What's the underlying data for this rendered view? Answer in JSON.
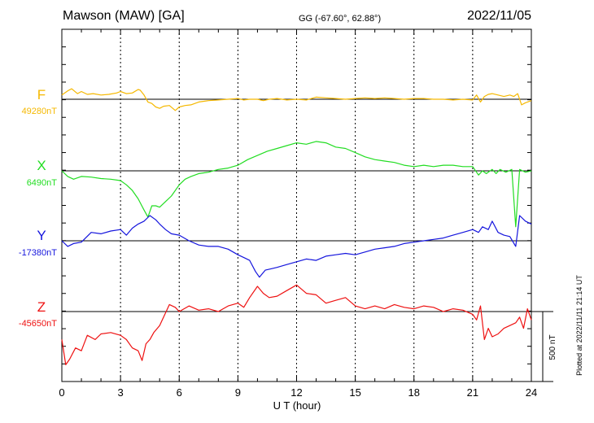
{
  "chart_data": {
    "type": "line",
    "title": "Mawson (MAW)  [GA]",
    "coordinates": "GG (-67.60°,  62.88°)",
    "date": "2022/11/05",
    "xlabel": "U T (hour)",
    "xlim": [
      0,
      24
    ],
    "xticks": [
      0,
      3,
      6,
      9,
      12,
      15,
      18,
      21,
      24
    ],
    "xtick_labels": [
      "0",
      "3",
      "6",
      "9",
      "12",
      "15",
      "18",
      "21",
      "24"
    ],
    "grid": true,
    "scale_bar": {
      "label": "500 nT",
      "value_nT": 500
    },
    "plotted_note": "Plotted at 2022/11/11 21:14 UT",
    "series": [
      {
        "name": "F",
        "baseline": "49280nT",
        "color": "#f5b800",
        "x": [
          0,
          0.3,
          0.5,
          0.8,
          1,
          1.3,
          1.6,
          2,
          2.4,
          2.8,
          3,
          3.3,
          3.6,
          3.9,
          4,
          4.2,
          4.4,
          4.6,
          4.8,
          5,
          5.2,
          5.5,
          5.8,
          6,
          6.3,
          6.6,
          7,
          7.5,
          8,
          8.5,
          9,
          9.3,
          9.6,
          10,
          10.3,
          10.6,
          11,
          11.5,
          12,
          12.5,
          13,
          13.5,
          14,
          14.5,
          15,
          15.5,
          16,
          16.5,
          17,
          17.5,
          18,
          18.5,
          19,
          19.5,
          20,
          20.5,
          21,
          21.2,
          21.4,
          21.6,
          21.8,
          22,
          22.3,
          22.6,
          22.9,
          23.1,
          23.3,
          23.5,
          23.7,
          24
        ],
        "values": [
          30,
          60,
          75,
          40,
          55,
          35,
          40,
          30,
          35,
          45,
          55,
          40,
          45,
          70,
          65,
          30,
          -20,
          -30,
          -55,
          -65,
          -50,
          -45,
          -80,
          -55,
          -45,
          -40,
          -20,
          -10,
          -5,
          0,
          5,
          -5,
          0,
          0,
          -10,
          0,
          5,
          -5,
          0,
          -5,
          15,
          10,
          5,
          0,
          5,
          10,
          5,
          10,
          5,
          0,
          5,
          5,
          0,
          0,
          -5,
          0,
          -5,
          30,
          -20,
          20,
          35,
          40,
          30,
          20,
          30,
          20,
          40,
          -40,
          -25,
          -10
        ]
      },
      {
        "name": "X",
        "baseline": "6490nT",
        "color": "#22dd22",
        "x": [
          0,
          0.3,
          0.6,
          1,
          1.5,
          2,
          2.5,
          3,
          3.3,
          3.6,
          3.9,
          4.2,
          4.4,
          4.6,
          4.8,
          5,
          5.3,
          5.6,
          6,
          6.3,
          6.6,
          7,
          7.5,
          8,
          8.5,
          9,
          9.5,
          10,
          10.5,
          11,
          11.5,
          12,
          12.5,
          13,
          13.5,
          14,
          14.5,
          15,
          15.5,
          16,
          16.5,
          17,
          17.5,
          18,
          18.5,
          19,
          19.5,
          20,
          20.5,
          21,
          21.3,
          21.5,
          21.7,
          22,
          22.2,
          22.4,
          22.7,
          23,
          23.2,
          23.4,
          23.7,
          24
        ],
        "values": [
          0,
          -40,
          -60,
          -40,
          -45,
          -55,
          -60,
          -70,
          -100,
          -140,
          -200,
          -280,
          -330,
          -250,
          -250,
          -260,
          -220,
          -180,
          -100,
          -60,
          -40,
          -20,
          -10,
          10,
          20,
          40,
          80,
          110,
          140,
          160,
          180,
          200,
          190,
          210,
          200,
          170,
          160,
          130,
          100,
          80,
          70,
          60,
          40,
          30,
          40,
          30,
          40,
          40,
          30,
          30,
          -30,
          0,
          -20,
          10,
          -20,
          10,
          -10,
          10,
          -400,
          10,
          -10,
          0
        ]
      },
      {
        "name": "Y",
        "baseline": "-17380nT",
        "color": "#1515dd",
        "x": [
          0,
          0.3,
          0.6,
          1,
          1.5,
          2,
          2.5,
          3,
          3.3,
          3.6,
          3.9,
          4.2,
          4.5,
          4.8,
          5,
          5.3,
          5.6,
          6,
          6.5,
          7,
          7.5,
          8,
          8.5,
          9,
          9.3,
          9.6,
          9.9,
          10.1,
          10.4,
          10.7,
          11,
          11.5,
          12,
          12.5,
          13,
          13.5,
          14,
          14.5,
          15,
          15.5,
          16,
          16.5,
          17,
          17.5,
          18,
          18.5,
          19,
          19.5,
          20,
          20.5,
          21,
          21.3,
          21.5,
          21.8,
          22,
          22.3,
          22.6,
          22.9,
          23.2,
          23.4,
          23.7,
          24
        ],
        "values": [
          0,
          -40,
          -20,
          -10,
          60,
          50,
          70,
          80,
          40,
          90,
          120,
          140,
          180,
          150,
          120,
          80,
          50,
          40,
          0,
          -30,
          -40,
          -40,
          -60,
          -100,
          -120,
          -140,
          -220,
          -260,
          -210,
          -200,
          -190,
          -170,
          -150,
          -130,
          -140,
          -110,
          -100,
          -90,
          -100,
          -80,
          -60,
          -50,
          -40,
          -20,
          -10,
          0,
          10,
          20,
          40,
          60,
          80,
          60,
          100,
          80,
          140,
          60,
          40,
          30,
          -40,
          180,
          140,
          120
        ]
      },
      {
        "name": "Z",
        "baseline": "-45650nT",
        "color": "#ee1111",
        "x": [
          0,
          0.2,
          0.4,
          0.7,
          1,
          1.3,
          1.7,
          2,
          2.5,
          3,
          3.3,
          3.6,
          3.9,
          4.1,
          4.3,
          4.5,
          4.7,
          5,
          5.2,
          5.5,
          5.8,
          6,
          6.5,
          7,
          7.5,
          8,
          8.5,
          9,
          9.3,
          9.6,
          10,
          10.3,
          10.6,
          11,
          11.5,
          12,
          12.5,
          13,
          13.5,
          14,
          14.5,
          15,
          15.5,
          16,
          16.5,
          17,
          17.5,
          18,
          18.5,
          19,
          19.5,
          20,
          20.5,
          21,
          21.2,
          21.4,
          21.6,
          21.8,
          22,
          22.3,
          22.6,
          22.9,
          23.2,
          23.4,
          23.6,
          23.8,
          24
        ],
        "values": [
          -200,
          -380,
          -340,
          -260,
          -280,
          -170,
          -200,
          -160,
          -150,
          -170,
          -200,
          -260,
          -280,
          -350,
          -230,
          -200,
          -150,
          -100,
          -40,
          50,
          30,
          0,
          40,
          10,
          20,
          0,
          40,
          60,
          30,
          100,
          180,
          130,
          100,
          110,
          150,
          190,
          130,
          120,
          60,
          80,
          100,
          40,
          20,
          40,
          20,
          50,
          30,
          20,
          40,
          30,
          0,
          20,
          10,
          -20,
          -60,
          40,
          -200,
          -120,
          -180,
          -160,
          -120,
          -100,
          -80,
          -40,
          -120,
          20,
          -60
        ]
      }
    ]
  }
}
